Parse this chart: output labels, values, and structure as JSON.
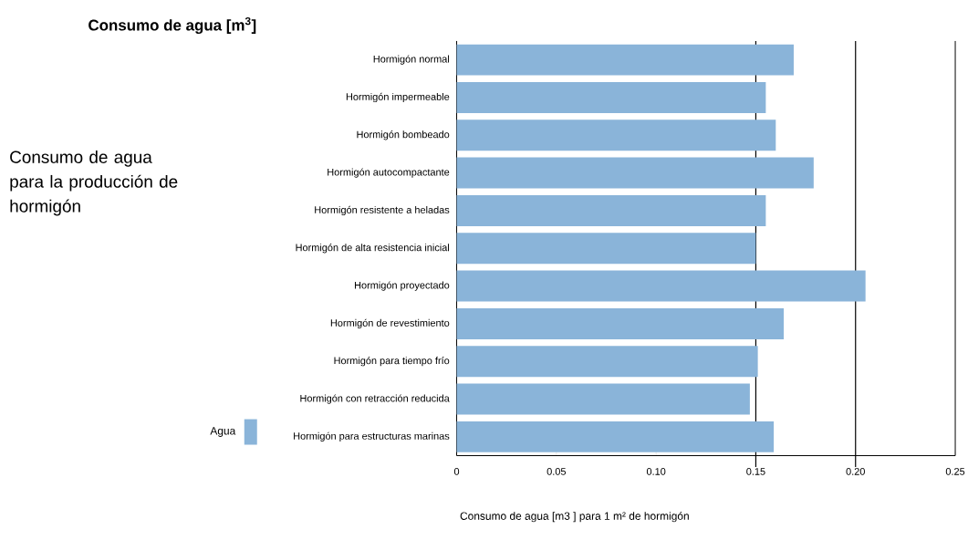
{
  "chart_data": {
    "type": "bar",
    "orientation": "horizontal",
    "title": "Consumo de agua [m$^{3}$]",
    "subtitle": "Consumo de agua para la producción de hormigón",
    "xlabel": "Consumo de agua [m3 ] para 1 m² de hormigón",
    "categories": [
      "Hormigón normal",
      "Hormigón impermeable",
      "Hormigón bombeado",
      "Hormigón autocompactante",
      "Hormigón resistente a heladas",
      "Hormigón de alta resistencia inicial",
      "Hormigón proyectado",
      "Hormigón de revestimiento",
      "Hormigón para tiempo frío",
      "Hormigón con retracción reducida",
      "Hormigón para estructuras marinas"
    ],
    "series": [
      {
        "name": "Agua",
        "color": "#8ab4d9",
        "values": [
          0.169,
          0.155,
          0.16,
          0.179,
          0.155,
          0.15,
          0.205,
          0.164,
          0.151,
          0.147,
          0.159
        ]
      }
    ],
    "xlim": [
      0,
      0.25
    ],
    "xticks": [
      0,
      0.05,
      {
        "value": 0.1,
        "label": "0.10"
      },
      0.15,
      {
        "value": 0.2,
        "label": "0.20"
      },
      0.25
    ],
    "ref_lines": [
      {
        "axis": "x",
        "value": 0.15,
        "color": "#000000"
      },
      {
        "axis": "x",
        "value": 0.2,
        "color": "#000000"
      }
    ],
    "legend": "bottom left"
  }
}
